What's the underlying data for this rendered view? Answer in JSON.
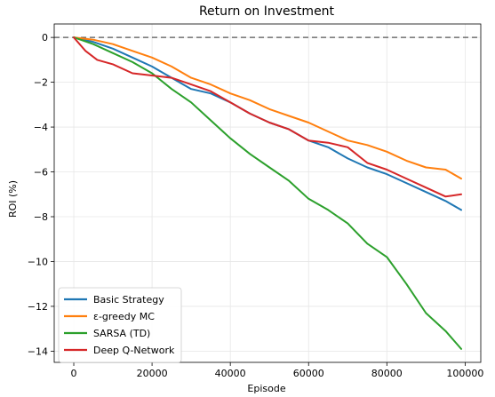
{
  "chart_data": {
    "type": "line",
    "title": "Return on Investment",
    "xlabel": "Episode",
    "ylabel": "ROI (%)",
    "xlim": [
      -5000,
      104000
    ],
    "ylim": [
      -14.5,
      0.6
    ],
    "xticks": [
      0,
      20000,
      40000,
      60000,
      80000,
      100000
    ],
    "yticks": [
      0,
      -2,
      -4,
      -6,
      -8,
      -10,
      -12,
      -14
    ],
    "grid": true,
    "legend_position": "lower-left",
    "reference_line": {
      "y": 0,
      "style": "dashed",
      "color": "#555555"
    },
    "series": [
      {
        "name": "Basic Strategy",
        "color": "#1f77b4",
        "x": [
          0,
          5000,
          10000,
          15000,
          20000,
          25000,
          30000,
          35000,
          40000,
          45000,
          50000,
          55000,
          60000,
          65000,
          70000,
          75000,
          80000,
          85000,
          90000,
          95000,
          99000
        ],
        "y": [
          0,
          -0.2,
          -0.5,
          -0.9,
          -1.3,
          -1.8,
          -2.3,
          -2.5,
          -2.9,
          -3.4,
          -3.8,
          -4.1,
          -4.6,
          -4.9,
          -5.4,
          -5.8,
          -6.1,
          -6.5,
          -6.9,
          -7.3,
          -7.7
        ]
      },
      {
        "name": "ε-greedy MC",
        "color": "#ff7f0e",
        "x": [
          0,
          5000,
          10000,
          15000,
          20000,
          25000,
          30000,
          35000,
          40000,
          45000,
          50000,
          55000,
          60000,
          65000,
          70000,
          75000,
          80000,
          85000,
          90000,
          95000,
          99000
        ],
        "y": [
          0,
          -0.1,
          -0.3,
          -0.6,
          -0.9,
          -1.3,
          -1.8,
          -2.1,
          -2.5,
          -2.8,
          -3.2,
          -3.5,
          -3.8,
          -4.2,
          -4.6,
          -4.8,
          -5.1,
          -5.5,
          -5.8,
          -5.9,
          -6.3
        ]
      },
      {
        "name": "SARSA (TD)",
        "color": "#2ca02c",
        "x": [
          0,
          5000,
          10000,
          15000,
          20000,
          25000,
          30000,
          35000,
          40000,
          45000,
          50000,
          55000,
          60000,
          65000,
          70000,
          75000,
          80000,
          85000,
          90000,
          95000,
          99000
        ],
        "y": [
          0,
          -0.3,
          -0.7,
          -1.1,
          -1.6,
          -2.3,
          -2.9,
          -3.7,
          -4.5,
          -5.2,
          -5.8,
          -6.4,
          -7.2,
          -7.7,
          -8.3,
          -9.2,
          -9.8,
          -11.0,
          -12.3,
          -13.1,
          -13.9
        ]
      },
      {
        "name": "Deep Q-Network",
        "color": "#d62728",
        "x": [
          0,
          3000,
          6000,
          10000,
          15000,
          20000,
          25000,
          30000,
          35000,
          40000,
          45000,
          50000,
          55000,
          60000,
          65000,
          70000,
          75000,
          80000,
          85000,
          90000,
          95000,
          99000
        ],
        "y": [
          0,
          -0.6,
          -1.0,
          -1.2,
          -1.6,
          -1.7,
          -1.8,
          -2.1,
          -2.4,
          -2.9,
          -3.4,
          -3.8,
          -4.1,
          -4.6,
          -4.7,
          -4.9,
          -5.6,
          -5.9,
          -6.3,
          -6.7,
          -7.1,
          -7.0
        ]
      }
    ]
  }
}
